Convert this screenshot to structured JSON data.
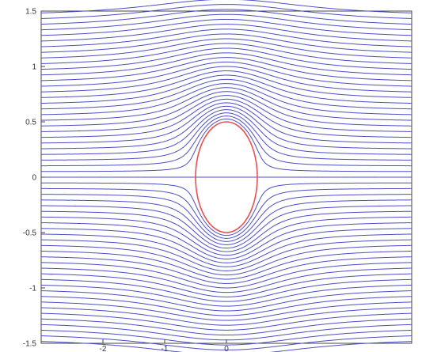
{
  "chart_data": {
    "type": "line",
    "title": "",
    "xlabel": "",
    "ylabel": "",
    "xlim": [
      -3.0,
      3.0
    ],
    "ylim": [
      -1.5,
      1.5
    ],
    "grid": false,
    "legend": "none",
    "y_ticks": [
      {
        "value": 1.5,
        "label": "1.5"
      },
      {
        "value": 1.0,
        "label": "1"
      },
      {
        "value": 0.5,
        "label": "0.5"
      },
      {
        "value": 0.0,
        "label": "0"
      },
      {
        "value": -0.5,
        "label": "-0.5"
      },
      {
        "value": -1.0,
        "label": "-1"
      },
      {
        "value": -1.5,
        "label": "-1.5"
      }
    ],
    "x_ticks": [
      {
        "value": -2.0,
        "label": "-2"
      },
      {
        "value": -1.0,
        "label": "-1"
      },
      {
        "value": 0.0,
        "label": "0"
      }
    ],
    "streamlines": {
      "description_of_flow": "potential flow around a circular cylinder",
      "levels": [
        -1.45,
        -1.4,
        -1.35,
        -1.3,
        -1.25,
        -1.2,
        -1.15,
        -1.1,
        -1.05,
        -1.0,
        -0.95,
        -0.9,
        -0.85,
        -0.8,
        -0.75,
        -0.7,
        -0.65,
        -0.6,
        -0.55,
        -0.5,
        -0.45,
        -0.4,
        -0.35,
        -0.3,
        -0.25,
        -0.2,
        -0.15,
        -0.1,
        -0.05,
        0.0,
        0.05,
        0.1,
        0.15,
        0.2,
        0.25,
        0.3,
        0.35,
        0.4,
        0.45,
        0.5,
        0.55,
        0.6,
        0.65,
        0.7,
        0.75,
        0.8,
        0.85,
        0.9,
        0.95,
        1.0,
        1.05,
        1.1,
        1.15,
        1.2,
        1.25,
        1.3,
        1.35,
        1.4,
        1.45
      ],
      "color": "#4a4fc4"
    },
    "cylinder": {
      "center": [
        0.0,
        0.0
      ],
      "radius": 0.5,
      "color": "#e8504f"
    }
  }
}
